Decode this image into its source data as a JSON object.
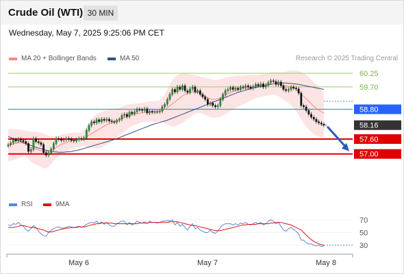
{
  "header": {
    "title": "Crude Oil (WTI)",
    "timeframe": "30 MIN"
  },
  "datetime": "Wednesday, May 7, 2025 9:25:06 PM CET",
  "legend": {
    "ma20": {
      "label": "MA 20 + Bollinger Bands",
      "color": "#f28b82"
    },
    "ma50": {
      "label": "MA 50",
      "color": "#2d4f8e"
    },
    "rsi": {
      "label": "RSI",
      "color": "#5b86d6"
    },
    "ma9": {
      "label": "9MA",
      "color": "#dd1111"
    }
  },
  "credit": "Research © 2025 Trading Central",
  "chart_data": {
    "type": "candlestick",
    "x_ticks": [
      "May 6",
      "May 7",
      "May 8"
    ],
    "price_levels": [
      {
        "value": 60.25,
        "label": "60.25",
        "style": "thin",
        "color": "#9ccc65",
        "text_color": "#7cb342"
      },
      {
        "value": 59.7,
        "label": "59.70",
        "style": "thin",
        "color": "#9ccc65",
        "text_color": "#7cb342"
      },
      {
        "value": 58.8,
        "label": "58.80",
        "style": "pivot",
        "color": "#5b86e5",
        "text_color": "#ffffff",
        "bg": "#2962ff"
      },
      {
        "value": 58.16,
        "label": "58.16",
        "style": "current",
        "color": "#333333",
        "text_color": "#ffffff",
        "bg": "#333333"
      },
      {
        "value": 57.6,
        "label": "57.60",
        "style": "support",
        "color": "#e00000",
        "text_color": "#ffffff",
        "bg": "#e00000"
      },
      {
        "value": 57.0,
        "label": "57.00",
        "style": "support",
        "color": "#e00000",
        "text_color": "#ffffff",
        "bg": "#e00000"
      }
    ],
    "close": [
      57.37,
      57.45,
      57.58,
      57.52,
      57.6,
      57.55,
      57.5,
      57.42,
      57.1,
      57.18,
      57.62,
      57.5,
      57.45,
      57.38,
      57.05,
      56.95,
      57.05,
      57.2,
      57.42,
      57.62,
      57.6,
      57.55,
      57.58,
      57.62,
      57.6,
      57.55,
      57.52,
      57.58,
      57.62,
      57.6,
      57.65,
      57.95,
      58.15,
      58.3,
      58.25,
      58.38,
      58.3,
      58.4,
      58.35,
      58.4,
      58.33,
      58.3,
      58.28,
      58.35,
      58.4,
      58.55,
      58.6,
      58.5,
      58.68,
      58.62,
      58.7,
      58.8,
      58.78,
      58.75,
      58.82,
      58.65,
      58.72,
      58.68,
      58.7,
      58.7,
      58.72,
      58.9,
      59.0,
      59.2,
      59.4,
      59.6,
      59.5,
      59.7,
      59.6,
      59.75,
      59.55,
      59.48,
      59.62,
      59.7,
      59.5,
      59.55,
      59.4,
      59.3,
      59.2,
      59.0,
      59.05,
      58.95,
      58.9,
      58.95,
      59.2,
      59.4,
      59.55,
      59.6,
      59.68,
      59.6,
      59.65,
      59.6,
      59.7,
      59.68,
      59.75,
      59.7,
      59.65,
      59.72,
      59.8,
      59.75,
      59.82,
      59.7,
      59.78,
      59.88,
      59.95,
      59.92,
      59.8,
      59.9,
      59.75,
      59.6,
      59.55,
      59.6,
      59.7,
      59.65,
      59.62,
      59.45,
      58.95,
      58.9,
      58.75,
      58.6,
      58.48,
      58.4,
      58.3,
      58.25,
      58.2,
      58.16
    ],
    "ma20": [
      57.35,
      57.37,
      57.4,
      57.42,
      57.45,
      57.45,
      57.44,
      57.4,
      57.32,
      57.25,
      57.22,
      57.2,
      57.16,
      57.12,
      57.1,
      57.1,
      57.12,
      57.16,
      57.2,
      57.26,
      57.32,
      57.38,
      57.42,
      57.46,
      57.5,
      57.52,
      57.54,
      57.56,
      57.58,
      57.6,
      57.64,
      57.7,
      57.76,
      57.82,
      57.88,
      57.94,
      58.0,
      58.06,
      58.12,
      58.18,
      58.22,
      58.26,
      58.3,
      58.34,
      58.38,
      58.42,
      58.46,
      58.5,
      58.54,
      58.58,
      58.6,
      58.62,
      58.64,
      58.66,
      58.68,
      58.69,
      58.7,
      58.7,
      58.71,
      58.72,
      58.73,
      58.76,
      58.8,
      58.86,
      58.94,
      59.02,
      59.1,
      59.18,
      59.26,
      59.34,
      59.4,
      59.44,
      59.48,
      59.5,
      59.5,
      59.48,
      59.44,
      59.38,
      59.32,
      59.26,
      59.22,
      59.2,
      59.2,
      59.22,
      59.26,
      59.3,
      59.36,
      59.42,
      59.48,
      59.52,
      59.56,
      59.58,
      59.6,
      59.62,
      59.64,
      59.66,
      59.68,
      59.7,
      59.72,
      59.74,
      59.76,
      59.76,
      59.78,
      59.8,
      59.82,
      59.83,
      59.82,
      59.8,
      59.78,
      59.76,
      59.74,
      59.72,
      59.7,
      59.66,
      59.6,
      59.52,
      59.42,
      59.32,
      59.22,
      59.12,
      59.02,
      58.92,
      58.84,
      58.76,
      58.7,
      58.64
    ],
    "bb_upper": [
      58.0,
      58.0,
      58.0,
      58.0,
      58.0,
      57.98,
      57.96,
      57.94,
      57.92,
      57.9,
      57.9,
      57.9,
      57.88,
      57.86,
      57.82,
      57.78,
      57.74,
      57.7,
      57.7,
      57.72,
      57.75,
      57.78,
      57.8,
      57.82,
      57.84,
      57.85,
      57.86,
      57.86,
      57.86,
      57.87,
      57.95,
      58.1,
      58.25,
      58.4,
      58.52,
      58.6,
      58.66,
      58.7,
      58.74,
      58.76,
      58.78,
      58.8,
      58.82,
      58.84,
      58.86,
      58.9,
      58.94,
      58.98,
      59.0,
      59.02,
      59.02,
      59.04,
      59.05,
      59.06,
      59.08,
      59.1,
      59.12,
      59.12,
      59.12,
      59.13,
      59.15,
      59.25,
      59.4,
      59.6,
      59.8,
      59.98,
      60.1,
      60.18,
      60.22,
      60.24,
      60.24,
      60.23,
      60.22,
      60.2,
      60.18,
      60.15,
      60.12,
      60.1,
      60.08,
      60.05,
      60.02,
      60.0,
      59.98,
      60.0,
      60.02,
      60.05,
      60.08,
      60.1,
      60.12,
      60.14,
      60.15,
      60.16,
      60.16,
      60.16,
      60.17,
      60.18,
      60.18,
      60.18,
      60.18,
      60.18,
      60.2,
      60.22,
      60.24,
      60.26,
      60.28,
      60.3,
      60.3,
      60.3,
      60.3,
      60.3,
      60.32,
      60.35,
      60.36,
      60.36,
      60.36,
      60.34,
      60.3,
      60.25,
      60.18,
      60.1,
      60.0,
      59.9,
      59.8,
      59.7,
      59.6,
      59.5
    ],
    "bb_lower": [
      56.7,
      56.72,
      56.75,
      56.78,
      56.82,
      56.88,
      56.92,
      56.9,
      56.8,
      56.7,
      56.62,
      56.58,
      56.52,
      56.46,
      56.42,
      56.42,
      56.48,
      56.6,
      56.72,
      56.82,
      56.9,
      56.98,
      57.04,
      57.1,
      57.16,
      57.2,
      57.22,
      57.25,
      57.28,
      57.3,
      57.3,
      57.28,
      57.26,
      57.24,
      57.22,
      57.22,
      57.22,
      57.25,
      57.3,
      57.36,
      57.42,
      57.5,
      57.58,
      57.66,
      57.74,
      57.82,
      57.9,
      57.98,
      58.06,
      58.12,
      58.16,
      58.2,
      58.24,
      58.27,
      58.3,
      58.3,
      58.3,
      58.3,
      58.3,
      58.3,
      58.3,
      58.28,
      58.24,
      58.18,
      58.14,
      58.1,
      58.1,
      58.14,
      58.2,
      58.26,
      58.32,
      58.4,
      58.48,
      58.56,
      58.62,
      58.66,
      58.66,
      58.62,
      58.58,
      58.52,
      58.48,
      58.46,
      58.46,
      58.48,
      58.5,
      58.54,
      58.6,
      58.66,
      58.72,
      58.78,
      58.84,
      58.9,
      58.95,
      59.0,
      59.05,
      59.1,
      59.15,
      59.2,
      59.24,
      59.28,
      59.3,
      59.32,
      59.34,
      59.36,
      59.38,
      59.38,
      59.36,
      59.32,
      59.26,
      59.2,
      59.12,
      59.04,
      58.96,
      58.86,
      58.72,
      58.56,
      58.4,
      58.24,
      58.1,
      57.98,
      57.88,
      57.8,
      57.74,
      57.7,
      57.68,
      57.66
    ],
    "ma50": [
      57.7,
      57.66,
      57.62,
      57.58,
      57.54,
      57.5,
      57.46,
      57.42,
      57.38,
      57.34,
      57.3,
      57.27,
      57.24,
      57.21,
      57.18,
      57.15,
      57.13,
      57.11,
      57.09,
      57.08,
      57.07,
      57.07,
      57.07,
      57.08,
      57.09,
      57.1,
      57.12,
      57.14,
      57.16,
      57.19,
      57.22,
      57.25,
      57.28,
      57.31,
      57.34,
      57.37,
      57.4,
      57.43,
      57.46,
      57.49,
      57.52,
      57.55,
      57.58,
      57.62,
      57.66,
      57.7,
      57.74,
      57.78,
      57.82,
      57.86,
      57.9,
      57.94,
      57.98,
      58.02,
      58.06,
      58.1,
      58.14,
      58.18,
      58.21,
      58.24,
      58.27,
      58.3,
      58.33,
      58.36,
      58.4,
      58.44,
      58.48,
      58.52,
      58.56,
      58.6,
      58.64,
      58.68,
      58.72,
      58.76,
      58.8,
      58.84,
      58.88,
      58.92,
      58.96,
      59.0,
      59.04,
      59.08,
      59.12,
      59.16,
      59.2,
      59.24,
      59.28,
      59.32,
      59.36,
      59.4,
      59.44,
      59.48,
      59.51,
      59.54,
      59.57,
      59.6,
      59.63,
      59.66,
      59.68,
      59.7,
      59.72,
      59.74,
      59.76,
      59.78,
      59.8,
      59.82,
      59.84,
      59.85,
      59.86,
      59.86,
      59.86,
      59.85,
      59.84,
      59.83,
      59.82,
      59.8,
      59.78,
      59.76,
      59.74,
      59.72,
      59.7,
      59.68,
      59.66,
      59.64,
      59.62,
      59.6
    ],
    "ma50_dotted_end": 59.12,
    "pivot_dotted_end": 58.8,
    "projection_arrow": {
      "from": 58.16,
      "to": 57.0
    },
    "rsi": {
      "ticks": [
        70,
        50,
        30
      ],
      "rsi": [
        62,
        61,
        64,
        63,
        66,
        62,
        60,
        55,
        52,
        56,
        61,
        58,
        52,
        48,
        45,
        44,
        50,
        54,
        56,
        58,
        59,
        57,
        57,
        58,
        60,
        59,
        58,
        59,
        60,
        58,
        60,
        63,
        65,
        66,
        65,
        68,
        64,
        67,
        63,
        66,
        62,
        60,
        60,
        64,
        66,
        68,
        68,
        62,
        66,
        62,
        64,
        68,
        66,
        65,
        67,
        64,
        68,
        66,
        66,
        65,
        66,
        68,
        68,
        69,
        68,
        70,
        62,
        66,
        60,
        63,
        58,
        54,
        60,
        64,
        56,
        58,
        54,
        52,
        50,
        50,
        54,
        50,
        49,
        52,
        58,
        62,
        64,
        64,
        64,
        62,
        64,
        62,
        65,
        64,
        66,
        63,
        62,
        64,
        66,
        64,
        66,
        62,
        64,
        68,
        70,
        68,
        64,
        66,
        60,
        54,
        52,
        56,
        58,
        55,
        52,
        48,
        38,
        38,
        34,
        32,
        32,
        30,
        29,
        30,
        28,
        29
      ],
      "ma9": [
        58,
        58,
        58,
        59,
        60,
        61,
        61,
        60,
        59,
        58,
        58,
        57,
        56,
        55,
        54,
        52,
        51,
        51,
        52,
        53,
        54,
        55,
        56,
        57,
        57,
        58,
        58,
        58,
        59,
        59,
        59,
        60,
        61,
        62,
        63,
        64,
        64,
        65,
        65,
        65,
        65,
        65,
        64,
        64,
        64,
        64,
        64,
        64,
        64,
        64,
        64,
        64,
        65,
        65,
        65,
        65,
        66,
        66,
        66,
        66,
        66,
        66,
        66,
        66,
        67,
        67,
        67,
        67,
        66,
        65,
        64,
        63,
        62,
        61,
        61,
        60,
        59,
        58,
        57,
        56,
        55,
        54,
        53,
        53,
        53,
        54,
        55,
        56,
        57,
        58,
        59,
        60,
        61,
        62,
        62,
        63,
        63,
        63,
        63,
        64,
        64,
        64,
        64,
        64,
        65,
        65,
        66,
        66,
        66,
        65,
        64,
        63,
        62,
        60,
        58,
        56,
        54,
        50,
        46,
        42,
        39,
        36,
        34,
        32,
        31,
        30
      ],
      "dotted_ma9_end": 30
    }
  }
}
